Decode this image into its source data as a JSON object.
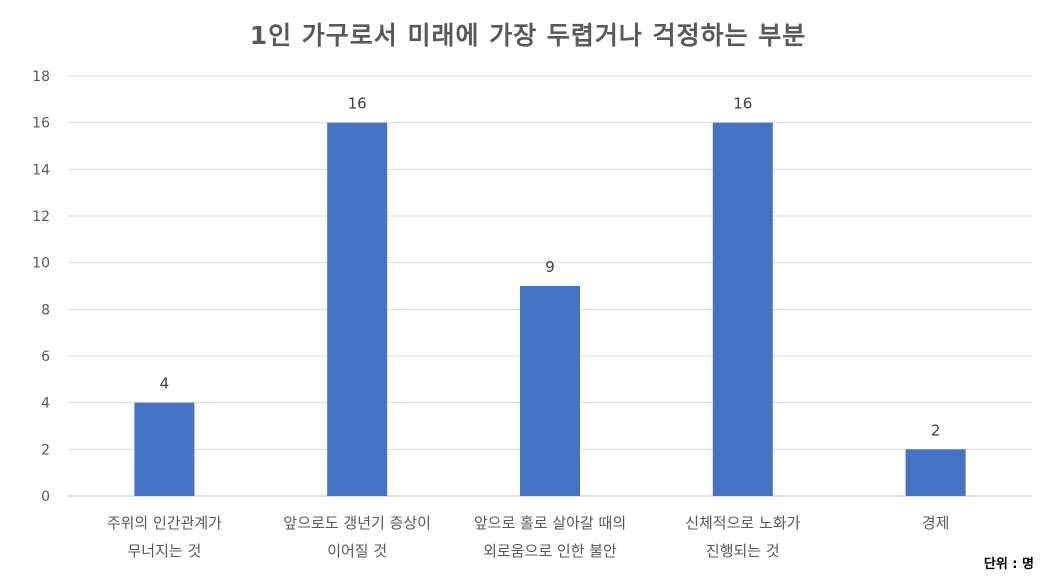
{
  "chart_data": {
    "type": "bar",
    "title": "1인 가구로서 미래에 가장 두렵거나 걱정하는 부분",
    "categories": [
      [
        "주위의 인간관계가",
        "무너지는 것"
      ],
      [
        "앞으로도 갱년기 증상이",
        "이어질 것"
      ],
      [
        "앞으로 홀로 살아갈 때의",
        "외로움으로 인한 불안"
      ],
      [
        "신체적으로 노화가",
        "진행되는 것"
      ],
      [
        "경제"
      ]
    ],
    "values": [
      4,
      16,
      9,
      16,
      2
    ],
    "data_labels": [
      "4",
      "16",
      "9",
      "16",
      "2"
    ],
    "ylim": [
      0,
      18
    ],
    "y_ticks": [
      0,
      2,
      4,
      6,
      8,
      10,
      12,
      14,
      16,
      18
    ],
    "grid": true,
    "legend": "none",
    "unit_note": "단위 : 명",
    "colors": {
      "bar": "#4472C4",
      "grid": "#D9D9D9",
      "text": "#595959"
    }
  }
}
